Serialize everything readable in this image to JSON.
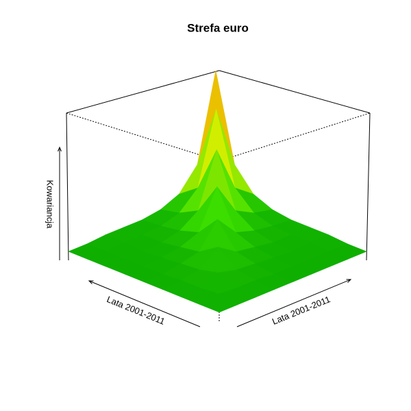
{
  "chart_data": {
    "type": "surface",
    "title": "Strefa euro",
    "xlabel": "Lata 2001-2011",
    "ylabel": "Lata 2001-2011",
    "zlabel": "Kowariancja",
    "zlim": [
      0,
      1
    ],
    "colors": [
      "#00a000",
      "#3ee000",
      "#e8f000",
      "#f08000",
      "#e00000"
    ],
    "z": [
      [
        0.06,
        0.06,
        0.06,
        0.06,
        0.06,
        0.06,
        0.06,
        0.06,
        0.06
      ],
      [
        0.06,
        0.08,
        0.07,
        0.07,
        0.06,
        0.06,
        0.06,
        0.06,
        0.06
      ],
      [
        0.06,
        0.07,
        0.12,
        0.09,
        0.08,
        0.07,
        0.06,
        0.07,
        0.07
      ],
      [
        0.06,
        0.07,
        0.09,
        0.19,
        0.11,
        0.09,
        0.07,
        0.07,
        0.07
      ],
      [
        0.06,
        0.06,
        0.08,
        0.11,
        0.28,
        0.14,
        0.1,
        0.08,
        0.07
      ],
      [
        0.06,
        0.06,
        0.07,
        0.09,
        0.14,
        0.41,
        0.19,
        0.12,
        0.09
      ],
      [
        0.06,
        0.06,
        0.06,
        0.07,
        0.1,
        0.19,
        0.58,
        0.25,
        0.15
      ],
      [
        0.06,
        0.06,
        0.07,
        0.07,
        0.08,
        0.12,
        0.25,
        0.79,
        0.32
      ],
      [
        0.06,
        0.06,
        0.07,
        0.07,
        0.07,
        0.09,
        0.15,
        0.32,
        1.0
      ]
    ]
  }
}
